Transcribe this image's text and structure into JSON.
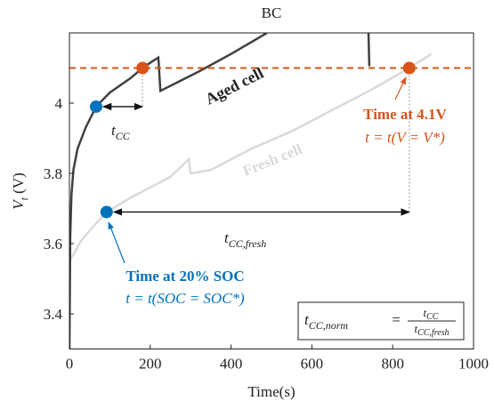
{
  "chart_data": {
    "type": "line",
    "title": "BC",
    "xlabel": "Time(s)",
    "ylabel": {
      "text": "V",
      "sub": "t",
      "rest": " (V)"
    },
    "xlim": [
      0,
      1000
    ],
    "ylim": [
      3.3,
      4.2
    ],
    "xticks": [
      0,
      200,
      400,
      600,
      800,
      1000
    ],
    "yticks": [
      3.4,
      3.6,
      3.8,
      4
    ],
    "series": [
      {
        "name": "Aged cell",
        "color": "#404040",
        "x": [
          0,
          2,
          5,
          10,
          20,
          40,
          66,
          100,
          150,
          181,
          200,
          220,
          225,
          260,
          320,
          400,
          489,
          495,
          740,
          742
        ],
        "values": [
          3.3,
          3.62,
          3.74,
          3.81,
          3.87,
          3.93,
          3.99,
          4.03,
          4.07,
          4.1,
          4.115,
          4.13,
          4.035,
          4.055,
          4.09,
          4.14,
          4.2,
          null,
          4.2,
          4.105
        ]
      },
      {
        "name": "Fresh cell",
        "color": "#d9d9d9",
        "x": [
          0,
          10,
          30,
          60,
          92,
          150,
          200,
          250,
          295,
          300,
          350,
          450,
          550,
          650,
          750,
          841,
          896
        ],
        "values": [
          3.55,
          3.57,
          3.61,
          3.65,
          3.69,
          3.73,
          3.76,
          3.79,
          3.84,
          3.8,
          3.81,
          3.87,
          3.92,
          3.98,
          4.04,
          4.1,
          4.14
        ]
      }
    ],
    "hline": {
      "value": 4.1,
      "color": "#d95319"
    },
    "markers": [
      {
        "x": 66,
        "y": 3.99,
        "color": "#0072bd"
      },
      {
        "x": 181,
        "y": 4.1,
        "color": "#d95319"
      },
      {
        "x": 841,
        "y": 4.1,
        "color": "#d95319"
      },
      {
        "x": 92,
        "y": 3.69,
        "color": "#0072bd"
      }
    ],
    "annotations": {
      "t_cc": {
        "text": "t",
        "sub": "CC"
      },
      "t_cc_fresh": {
        "text": "t",
        "sub": "CC,fresh"
      },
      "v_title": "Time at 4.1V",
      "v_formula": "t = t(V = V*)",
      "soc_title": "Time at 20% SOC",
      "soc_formula": "t = t(SOC = SOC*)"
    },
    "formula": {
      "lhs": {
        "text": "t",
        "sub": "CC,norm"
      },
      "eq": "=",
      "num": {
        "text": "t",
        "sub": "CC"
      },
      "den": {
        "text": "t",
        "sub": "CC,fresh"
      }
    }
  }
}
